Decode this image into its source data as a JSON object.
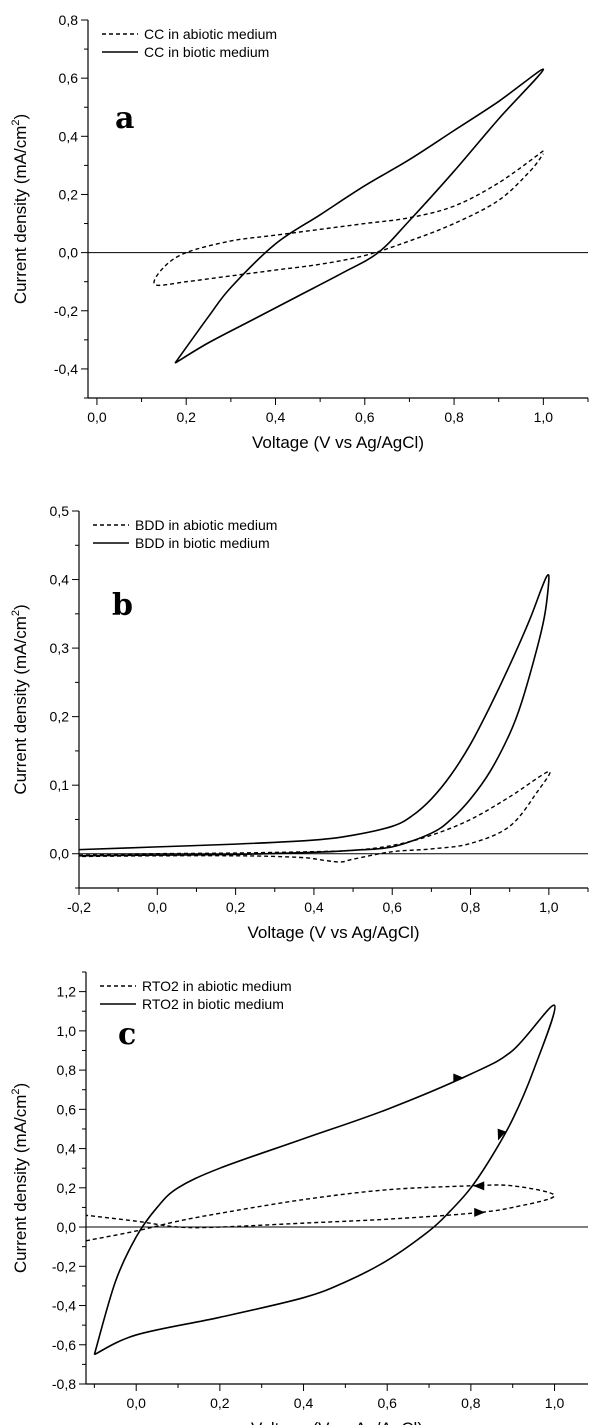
{
  "chart_data": [
    {
      "type": "line",
      "panel_label": "a",
      "xlabel": "Voltage (V vs Ag/AgCl)",
      "ylabel": "Current density (mA/cm2)",
      "ylabel_base": "Current density (mA/cm",
      "ylabel_sup": "2",
      "ylabel_tail": ")",
      "xlim": [
        -0.02,
        1.1
      ],
      "ylim": [
        -0.5,
        0.8
      ],
      "xticks": [
        0.0,
        0.2,
        0.4,
        0.6,
        0.8,
        1.0
      ],
      "xtick_labels": [
        "0,0",
        "0,2",
        "0,4",
        "0,6",
        "0,8",
        "1,0"
      ],
      "yticks": [
        -0.4,
        -0.2,
        0.0,
        0.2,
        0.4,
        0.6,
        0.8
      ],
      "ytick_labels": [
        "-0,4",
        "-0,2",
        "0,0",
        "0,2",
        "0,4",
        "0,6",
        "0,8"
      ],
      "zero_line": true,
      "grid": false,
      "legend_position": "top-left",
      "series": [
        {
          "name": "CC in abiotic medium",
          "style": "dashed",
          "x": [
            1.0,
            0.9,
            0.8,
            0.7,
            0.6,
            0.5,
            0.4,
            0.3,
            0.2,
            0.15,
            0.13,
            0.2,
            0.3,
            0.4,
            0.5,
            0.6,
            0.7,
            0.8,
            0.9,
            0.97,
            1.0
          ],
          "y": [
            0.35,
            0.24,
            0.16,
            0.12,
            0.1,
            0.08,
            0.06,
            0.04,
            0.0,
            -0.05,
            -0.11,
            -0.1,
            -0.08,
            -0.06,
            -0.04,
            -0.01,
            0.04,
            0.1,
            0.18,
            0.28,
            0.34
          ]
        },
        {
          "name": "CC in biotic medium",
          "style": "solid",
          "x": [
            0.175,
            0.25,
            0.3,
            0.4,
            0.5,
            0.6,
            0.7,
            0.8,
            0.9,
            1.0,
            0.9,
            0.8,
            0.7,
            0.63,
            0.55,
            0.45,
            0.35,
            0.25,
            0.175
          ],
          "y": [
            -0.38,
            -0.22,
            -0.12,
            0.03,
            0.13,
            0.23,
            0.32,
            0.42,
            0.52,
            0.63,
            0.46,
            0.28,
            0.11,
            0.0,
            -0.07,
            -0.15,
            -0.23,
            -0.31,
            -0.38
          ]
        }
      ]
    },
    {
      "type": "line",
      "panel_label": "b",
      "xlabel": "Voltage (V vs Ag/AgCl)",
      "ylabel": "Current density (mA/cm2)",
      "ylabel_base": "Current density (mA/cm",
      "ylabel_sup": "2",
      "ylabel_tail": ")",
      "xlim": [
        -0.2,
        1.1
      ],
      "ylim": [
        -0.05,
        0.5
      ],
      "xticks": [
        -0.2,
        0.0,
        0.2,
        0.4,
        0.6,
        0.8,
        1.0
      ],
      "xtick_labels": [
        "-0,2",
        "0,0",
        "0,2",
        "0,4",
        "0,6",
        "0,8",
        "1,0"
      ],
      "yticks": [
        0.0,
        0.1,
        0.2,
        0.3,
        0.4,
        0.5
      ],
      "ytick_labels": [
        "0,0",
        "0,1",
        "0,2",
        "0,3",
        "0,4",
        "0,5"
      ],
      "zero_line": true,
      "grid": false,
      "legend_position": "top-left",
      "series": [
        {
          "name": "BDD in abiotic medium",
          "style": "dashed",
          "x": [
            -0.2,
            0.0,
            0.2,
            0.4,
            0.5,
            0.6,
            0.7,
            0.8,
            0.9,
            1.0,
            0.97,
            0.9,
            0.8,
            0.7,
            0.6,
            0.5,
            0.47,
            0.43,
            0.38,
            0.3,
            0.2,
            0.0,
            -0.2
          ],
          "y": [
            -0.002,
            0.0,
            0.001,
            0.003,
            0.005,
            0.012,
            0.027,
            0.05,
            0.083,
            0.12,
            0.09,
            0.04,
            0.015,
            0.007,
            0.003,
            -0.008,
            -0.012,
            -0.01,
            -0.006,
            -0.004,
            -0.003,
            -0.003,
            -0.004
          ]
        },
        {
          "name": "BDD in biotic medium",
          "style": "solid",
          "x": [
            -0.2,
            0.0,
            0.2,
            0.4,
            0.5,
            0.6,
            0.65,
            0.7,
            0.75,
            0.8,
            0.85,
            0.9,
            0.95,
            0.98,
            0.995,
            1.0,
            0.99,
            0.97,
            0.93,
            0.9,
            0.85,
            0.8,
            0.75,
            0.7,
            0.6,
            0.5,
            0.4,
            0.2,
            0.0,
            -0.2
          ],
          "y": [
            0.006,
            0.01,
            0.014,
            0.02,
            0.027,
            0.04,
            0.055,
            0.08,
            0.115,
            0.16,
            0.215,
            0.275,
            0.34,
            0.385,
            0.405,
            0.4,
            0.35,
            0.3,
            0.22,
            0.175,
            0.12,
            0.08,
            0.05,
            0.03,
            0.01,
            0.005,
            0.002,
            -0.001,
            -0.002,
            -0.003
          ]
        }
      ]
    },
    {
      "type": "line",
      "panel_label": "c",
      "xlabel": "Voltage (V vs Ag/AgCl)",
      "ylabel": "Current density (mA/cm2)",
      "ylabel_base": "Current density (mA/cm",
      "ylabel_sup": "2",
      "ylabel_tail": ")",
      "xlim": [
        -0.12,
        1.08
      ],
      "ylim": [
        -0.8,
        1.3
      ],
      "xticks": [
        0.0,
        0.2,
        0.4,
        0.6,
        0.8,
        1.0
      ],
      "xtick_labels": [
        "0,0",
        "0,2",
        "0,4",
        "0,6",
        "0,8",
        "1,0"
      ],
      "yticks": [
        -0.8,
        -0.6,
        -0.4,
        -0.2,
        0.0,
        0.2,
        0.4,
        0.6,
        0.8,
        1.0,
        1.2
      ],
      "ytick_labels": [
        "-0,8",
        "-0,6",
        "-0,4",
        "-0,2",
        "0,0",
        "0,2",
        "0,4",
        "0,6",
        "0,8",
        "1,0",
        "1,2"
      ],
      "zero_line": true,
      "grid": false,
      "legend_position": "top-left",
      "series": [
        {
          "name": "RTO2 in abiotic medium",
          "style": "dashed",
          "x": [
            -0.12,
            0.0,
            0.1,
            0.2,
            0.4,
            0.6,
            0.8,
            0.9,
            1.0,
            0.9,
            0.8,
            0.6,
            0.4,
            0.2,
            0.1,
            0.0,
            -0.12
          ],
          "y": [
            -0.07,
            -0.02,
            0.03,
            0.07,
            0.14,
            0.19,
            0.21,
            0.21,
            0.16,
            0.1,
            0.07,
            0.04,
            0.02,
            0.0,
            0.0,
            0.03,
            0.06
          ]
        },
        {
          "name": "RTO2 in biotic medium",
          "style": "solid",
          "x": [
            -0.1,
            -0.05,
            0.0,
            0.05,
            0.1,
            0.2,
            0.4,
            0.6,
            0.8,
            0.9,
            1.0,
            0.95,
            0.9,
            0.85,
            0.8,
            0.75,
            0.7,
            0.6,
            0.5,
            0.4,
            0.2,
            0.0,
            -0.1
          ],
          "y": [
            -0.65,
            -0.28,
            -0.05,
            0.1,
            0.2,
            0.3,
            0.45,
            0.6,
            0.78,
            0.9,
            1.13,
            0.8,
            0.55,
            0.36,
            0.2,
            0.08,
            -0.02,
            -0.17,
            -0.28,
            -0.36,
            -0.46,
            -0.55,
            -0.65
          ]
        }
      ],
      "arrows": [
        {
          "x": 0.77,
          "y": 0.76,
          "direction": "right"
        },
        {
          "x": 0.87,
          "y": 0.47,
          "direction": "down-left"
        },
        {
          "x": 0.82,
          "y": 0.21,
          "direction": "left"
        },
        {
          "x": 0.82,
          "y": 0.075,
          "direction": "right"
        }
      ]
    }
  ]
}
